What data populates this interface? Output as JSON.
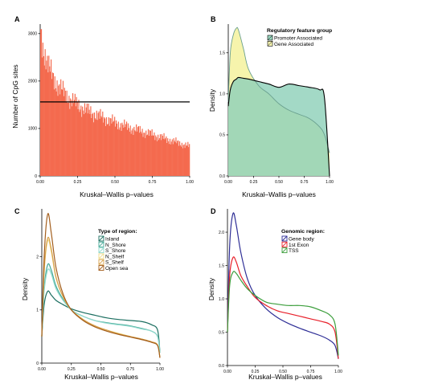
{
  "figure": {
    "panels": [
      {
        "letter": "A",
        "ylabel": "Number of CpG sites",
        "xlabel": "Kruskal–Wallis p–values"
      },
      {
        "letter": "B",
        "ylabel": "Density",
        "xlabel": "Kruskal–Wallis p–values"
      },
      {
        "letter": "C",
        "ylabel": "Density",
        "xlabel": "Kruskal–Wallis p–values"
      },
      {
        "letter": "D",
        "ylabel": "Density",
        "xlabel": "Kruskal–Wallis p–values"
      }
    ]
  },
  "chart_data": [
    {
      "panel": "A",
      "type": "bar",
      "title": "",
      "xlabel": "Kruskal–Wallis p–values",
      "ylabel": "Number of CpG sites",
      "xlim": [
        0,
        1
      ],
      "ylim": [
        0,
        3200
      ],
      "x_ticks": [
        "0.00",
        "0.25",
        "0.50",
        "0.75",
        "1.00"
      ],
      "y_ticks": [
        "0",
        "1000",
        "2000",
        "3000"
      ],
      "bin_width": 0.005,
      "histogram_profile": {
        "x": [
          0.0,
          0.01,
          0.02,
          0.04,
          0.06,
          0.08,
          0.1,
          0.12,
          0.15,
          0.2,
          0.25,
          0.3,
          0.35,
          0.4,
          0.5,
          0.6,
          0.7,
          0.8,
          0.9,
          1.0
        ],
        "count": [
          3150,
          2900,
          2700,
          2450,
          2250,
          2120,
          2000,
          1900,
          1780,
          1620,
          1500,
          1400,
          1320,
          1250,
          1120,
          1010,
          920,
          820,
          720,
          620
        ]
      },
      "reference_line": {
        "y": 1560,
        "label": ""
      },
      "colors": {
        "bars": "#f46a4e",
        "line": "#000000"
      }
    },
    {
      "panel": "B",
      "type": "area",
      "title": "",
      "xlabel": "Kruskal–Wallis p–values",
      "ylabel": "Density",
      "xlim": [
        0,
        1
      ],
      "ylim": [
        0,
        1.85
      ],
      "x_ticks": [
        "0.00",
        "0.25",
        "0.50",
        "0.75",
        "1.00"
      ],
      "y_ticks": [
        "0.0",
        "0.5",
        "1.0",
        "1.5"
      ],
      "legend": {
        "title": "Regulatory feature group",
        "position": "top-right"
      },
      "x": [
        0.0,
        0.02,
        0.05,
        0.08,
        0.1,
        0.15,
        0.2,
        0.3,
        0.4,
        0.5,
        0.6,
        0.7,
        0.8,
        0.9,
        0.95,
        1.0
      ],
      "series": [
        {
          "name": "Promoter Associated",
          "color": "#8fd1b9",
          "values": [
            0.85,
            1.05,
            1.15,
            1.18,
            1.2,
            1.19,
            1.18,
            1.15,
            1.12,
            1.08,
            1.12,
            1.1,
            1.08,
            1.05,
            0.95,
            0.0
          ]
        },
        {
          "name": "Gene Associated",
          "color": "#f5f3a8",
          "values": [
            0.9,
            1.5,
            1.72,
            1.8,
            1.78,
            1.55,
            1.3,
            1.1,
            1.0,
            0.88,
            0.8,
            0.75,
            0.7,
            0.6,
            0.5,
            0.28
          ]
        }
      ]
    },
    {
      "panel": "C",
      "type": "line",
      "title": "",
      "xlabel": "Kruskal–Wallis p–values",
      "ylabel": "Density",
      "xlim": [
        0,
        1
      ],
      "ylim": [
        0,
        2.9
      ],
      "x_ticks": [
        "0.00",
        "0.25",
        "0.50",
        "0.75",
        "1.00"
      ],
      "y_ticks": [
        "0",
        "1",
        "2"
      ],
      "legend": {
        "title": "Type of region:",
        "position": "top-right"
      },
      "x": [
        0.0,
        0.02,
        0.05,
        0.08,
        0.12,
        0.18,
        0.25,
        0.35,
        0.45,
        0.55,
        0.65,
        0.75,
        0.85,
        0.93,
        0.98,
        1.0
      ],
      "series": [
        {
          "name": "Island",
          "color": "#1b6e60",
          "values": [
            0.5,
            1.1,
            1.35,
            1.28,
            1.18,
            1.1,
            1.02,
            0.95,
            0.9,
            0.85,
            0.82,
            0.8,
            0.78,
            0.72,
            0.62,
            0.2
          ]
        },
        {
          "name": "N_Shore",
          "color": "#43a896",
          "values": [
            0.5,
            1.4,
            1.85,
            1.75,
            1.45,
            1.2,
            1.0,
            0.88,
            0.8,
            0.76,
            0.73,
            0.7,
            0.65,
            0.6,
            0.5,
            0.2
          ]
        },
        {
          "name": "S_Shore",
          "color": "#8fd8cc",
          "values": [
            0.5,
            1.35,
            1.75,
            1.68,
            1.4,
            1.18,
            1.0,
            0.88,
            0.8,
            0.75,
            0.72,
            0.69,
            0.64,
            0.6,
            0.5,
            0.2
          ]
        },
        {
          "name": "N_Shelf",
          "color": "#f0dc8c",
          "values": [
            0.5,
            1.7,
            2.3,
            2.1,
            1.6,
            1.25,
            1.0,
            0.82,
            0.7,
            0.62,
            0.56,
            0.5,
            0.45,
            0.4,
            0.34,
            0.1
          ]
        },
        {
          "name": "S_Shelf",
          "color": "#d7a04a",
          "values": [
            0.5,
            1.75,
            2.35,
            2.15,
            1.62,
            1.25,
            1.0,
            0.82,
            0.7,
            0.62,
            0.55,
            0.5,
            0.45,
            0.4,
            0.34,
            0.1
          ]
        },
        {
          "name": "Open sea",
          "color": "#a35e1c",
          "values": [
            0.5,
            2.0,
            2.8,
            2.45,
            1.8,
            1.3,
            1.0,
            0.8,
            0.68,
            0.6,
            0.54,
            0.49,
            0.44,
            0.39,
            0.33,
            0.1
          ]
        }
      ]
    },
    {
      "panel": "D",
      "type": "line",
      "title": "",
      "xlabel": "Kruskal–Wallis p–values",
      "ylabel": "Density",
      "xlim": [
        0,
        1
      ],
      "ylim": [
        0,
        2.35
      ],
      "x_ticks": [
        "0.00",
        "0.25",
        "0.50",
        "0.75",
        "1.00"
      ],
      "y_ticks": [
        "0.0",
        "0.5",
        "1.0",
        "1.5",
        "2.0"
      ],
      "legend": {
        "title": "Genomic region:",
        "position": "top-right"
      },
      "x": [
        0.0,
        0.02,
        0.05,
        0.08,
        0.12,
        0.18,
        0.25,
        0.35,
        0.45,
        0.55,
        0.65,
        0.75,
        0.85,
        0.92,
        0.97,
        1.0
      ],
      "series": [
        {
          "name": "Gene body",
          "color": "#2e2e96",
          "values": [
            0.5,
            1.8,
            2.28,
            2.1,
            1.7,
            1.3,
            1.05,
            0.85,
            0.72,
            0.63,
            0.56,
            0.5,
            0.44,
            0.38,
            0.3,
            0.1
          ]
        },
        {
          "name": "1st Exon",
          "color": "#e8212b",
          "values": [
            0.5,
            1.35,
            1.62,
            1.55,
            1.35,
            1.18,
            1.02,
            0.9,
            0.82,
            0.78,
            0.74,
            0.7,
            0.66,
            0.62,
            0.5,
            0.1
          ]
        },
        {
          "name": "TSS",
          "color": "#3c9e3c",
          "values": [
            0.5,
            1.2,
            1.4,
            1.38,
            1.28,
            1.15,
            1.05,
            0.95,
            0.92,
            0.9,
            0.9,
            0.88,
            0.82,
            0.76,
            0.62,
            0.15
          ]
        }
      ]
    }
  ]
}
